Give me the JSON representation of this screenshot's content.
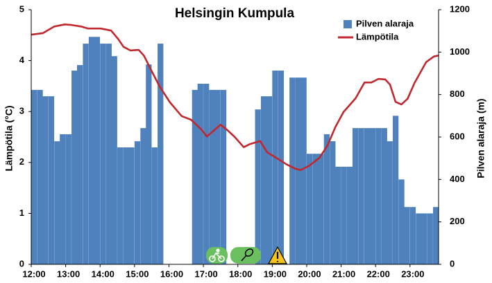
{
  "chart_data": {
    "type": "combo",
    "title": "Helsingin Kumpula",
    "y_label": "Lämpötila (°C)",
    "y2_label": "Pilven alaraja (m)",
    "xlim": [
      12,
      23.83
    ],
    "xticks": [
      {
        "value": 12,
        "label": "12:00"
      },
      {
        "value": 13,
        "label": "13:00"
      },
      {
        "value": 14,
        "label": "14:00"
      },
      {
        "value": 15,
        "label": "15:00"
      },
      {
        "value": 16,
        "label": "16:00"
      },
      {
        "value": 17,
        "label": "17:00"
      },
      {
        "value": 18,
        "label": "18:00"
      },
      {
        "value": 19,
        "label": "19:00"
      },
      {
        "value": 20,
        "label": "20:00"
      },
      {
        "value": 21,
        "label": "21:00"
      },
      {
        "value": 22,
        "label": "22:00"
      },
      {
        "value": 23,
        "label": "23:00"
      }
    ],
    "ylim": [
      0,
      5
    ],
    "yticks": [
      0,
      1,
      2,
      3,
      4,
      5
    ],
    "y2lim": [
      0,
      1200
    ],
    "y2ticks": [
      0,
      200,
      400,
      600,
      800,
      1000,
      1200
    ],
    "grid": false,
    "legend": "top-right",
    "series": [
      {
        "name": "Pilven alaraja",
        "type": "bar",
        "axis": "y2",
        "color": "#4f81bd",
        "x": [
          12,
          12.17,
          12.33,
          12.5,
          12.67,
          12.83,
          13,
          13.17,
          13.33,
          13.5,
          13.67,
          13.83,
          14,
          14.17,
          14.33,
          14.5,
          14.67,
          14.83,
          15,
          15.17,
          15.33,
          15.5,
          15.67,
          15.83,
          16,
          16.17,
          16.33,
          16.5,
          16.67,
          16.83,
          17,
          17.17,
          17.33,
          17.5,
          17.67,
          17.83,
          18,
          18.17,
          18.33,
          18.5,
          18.67,
          18.83,
          19,
          19.17,
          19.33,
          19.5,
          19.67,
          19.83,
          20,
          20.17,
          20.33,
          20.5,
          20.67,
          20.83,
          21,
          21.17,
          21.33,
          21.5,
          21.67,
          21.83,
          22,
          22.17,
          22.33,
          22.5,
          22.67,
          22.83,
          23,
          23.17,
          23.33,
          23.5,
          23.67
        ],
        "values": [
          822,
          822,
          792,
          792,
          580,
          613,
          613,
          913,
          939,
          1040,
          1072,
          1072,
          1040,
          1040,
          981,
          551,
          551,
          551,
          580,
          642,
          942,
          551,
          1040,
          null,
          null,
          null,
          null,
          null,
          822,
          851,
          851,
          822,
          822,
          822,
          null,
          null,
          null,
          null,
          null,
          730,
          792,
          792,
          913,
          913,
          null,
          880,
          880,
          880,
          521,
          521,
          521,
          613,
          580,
          460,
          460,
          460,
          642,
          642,
          642,
          642,
          642,
          642,
          580,
          700,
          400,
          270,
          270,
          240,
          240,
          240,
          270
        ]
      },
      {
        "name": "Lämpötila",
        "type": "line",
        "axis": "y",
        "color": "#c0282d",
        "x": [
          12.0,
          12.34,
          12.67,
          12.97,
          13.17,
          13.45,
          13.65,
          14.02,
          14.32,
          14.52,
          14.68,
          14.88,
          15.12,
          15.27,
          15.47,
          15.73,
          16.03,
          16.37,
          16.64,
          16.94,
          17.1,
          17.34,
          17.5,
          17.69,
          17.91,
          18.17,
          18.35,
          18.65,
          18.85,
          19.12,
          19.42,
          19.66,
          19.82,
          20.06,
          20.37,
          20.61,
          20.83,
          21.07,
          21.42,
          21.68,
          21.88,
          22.08,
          22.28,
          22.42,
          22.58,
          22.75,
          22.93,
          23.13,
          23.47,
          23.69,
          23.83
        ],
        "values": [
          4.51,
          4.54,
          4.67,
          4.71,
          4.7,
          4.67,
          4.63,
          4.63,
          4.59,
          4.43,
          4.27,
          4.2,
          4.21,
          4.1,
          3.83,
          3.49,
          3.18,
          2.91,
          2.84,
          2.65,
          2.51,
          2.65,
          2.74,
          2.64,
          2.5,
          2.3,
          2.36,
          2.42,
          2.2,
          2.09,
          1.96,
          1.88,
          1.85,
          1.93,
          2.09,
          2.34,
          2.69,
          2.99,
          3.26,
          3.57,
          3.57,
          3.64,
          3.63,
          3.53,
          3.19,
          3.14,
          3.25,
          3.56,
          3.97,
          4.08,
          4.1
        ]
      }
    ]
  }
}
